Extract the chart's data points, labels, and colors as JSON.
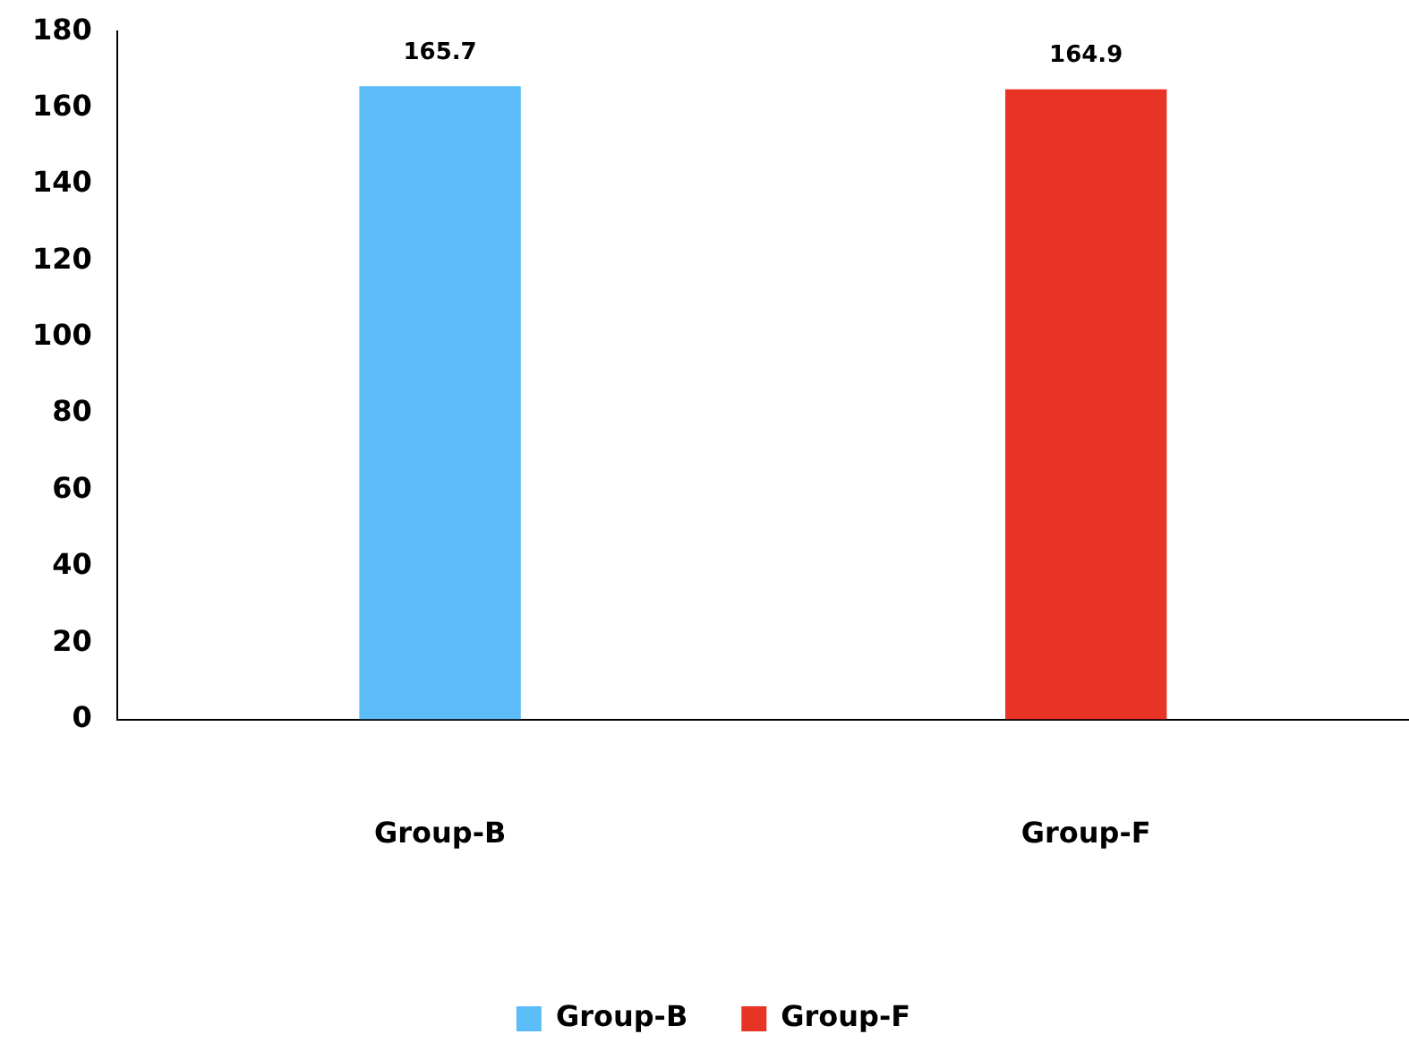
{
  "chart_data": {
    "type": "bar",
    "categories": [
      "Group-B",
      "Group-F"
    ],
    "series": [
      {
        "name": "Group-B",
        "color": "#5bbcf8",
        "values": [
          165.7,
          null
        ]
      },
      {
        "name": "Group-F",
        "color": "#e83424",
        "values": [
          null,
          164.9
        ]
      }
    ],
    "ylim": [
      0,
      180
    ],
    "yticks": [
      0,
      20,
      40,
      60,
      80,
      100,
      120,
      140,
      160,
      180
    ],
    "grid": false,
    "legend": "bottom",
    "data_labels": true
  }
}
